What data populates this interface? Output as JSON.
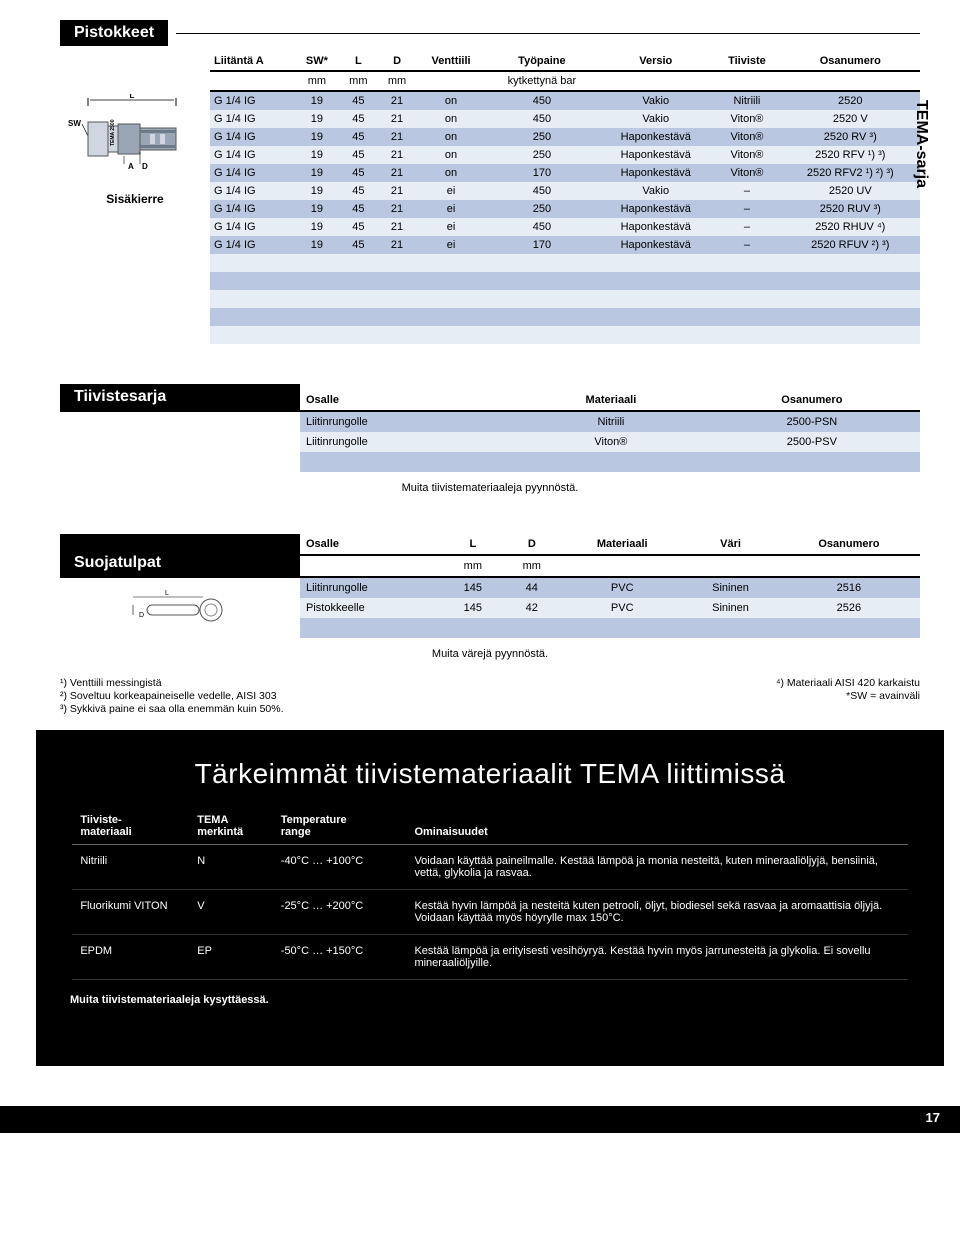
{
  "side_tab": "TEMA-sarja",
  "table1": {
    "title": "Pistokkeet",
    "headers": [
      "Liitäntä A",
      "SW*",
      "L",
      "D",
      "Venttiili",
      "Työpaine",
      "Versio",
      "Tiiviste",
      "Osanumero"
    ],
    "subheaders": [
      "",
      "mm",
      "mm",
      "mm",
      "",
      "kytkettynä bar",
      "",
      "",
      ""
    ],
    "diagram_caption": "Sisäkierre",
    "rows": [
      [
        "G 1/4 IG",
        "19",
        "45",
        "21",
        "on",
        "450",
        "Vakio",
        "Nitriili",
        "2520"
      ],
      [
        "G 1/4 IG",
        "19",
        "45",
        "21",
        "on",
        "450",
        "Vakio",
        "Viton®",
        "2520 V"
      ],
      [
        "G 1/4 IG",
        "19",
        "45",
        "21",
        "on",
        "250",
        "Haponkestävä",
        "Viton®",
        "2520 RV ³)"
      ],
      [
        "G 1/4 IG",
        "19",
        "45",
        "21",
        "on",
        "250",
        "Haponkestävä",
        "Viton®",
        "2520 RFV ¹) ³)"
      ],
      [
        "G 1/4 IG",
        "19",
        "45",
        "21",
        "on",
        "170",
        "Haponkestävä",
        "Viton®",
        "2520 RFV2 ¹) ²) ³)"
      ],
      [
        "G 1/4 IG",
        "19",
        "45",
        "21",
        "ei",
        "450",
        "Vakio",
        "–",
        "2520 UV"
      ],
      [
        "G 1/4 IG",
        "19",
        "45",
        "21",
        "ei",
        "250",
        "Haponkestävä",
        "–",
        "2520 RUV ³)"
      ],
      [
        "G 1/4 IG",
        "19",
        "45",
        "21",
        "ei",
        "450",
        "Haponkestävä",
        "–",
        "2520 RHUV ⁴)"
      ],
      [
        "G 1/4 IG",
        "19",
        "45",
        "21",
        "ei",
        "170",
        "Haponkestävä",
        "–",
        "2520 RFUV ²) ³)"
      ]
    ],
    "empty_rows": 5,
    "diagram_labels": {
      "L": "L",
      "SW": "SW",
      "A": "A",
      "D": "D",
      "mark": "TEMA 2500"
    }
  },
  "table2": {
    "title": "Tiivistesarja",
    "headers": [
      "Osalle",
      "Materiaali",
      "Osanumero"
    ],
    "rows": [
      [
        "Liitinrungolle",
        "Nitriili",
        "2500-PSN"
      ],
      [
        "Liitinrungolle",
        "Viton®",
        "2500-PSV"
      ]
    ],
    "note": "Muita tiivistemateriaaleja pyynnöstä."
  },
  "table3": {
    "title": "Suojatulpat",
    "headers": [
      "Osalle",
      "L",
      "D",
      "Materiaali",
      "Väri",
      "Osanumero"
    ],
    "subheaders": [
      "",
      "mm",
      "mm",
      "",
      "",
      ""
    ],
    "rows": [
      [
        "Liitinrungolle",
        "145",
        "44",
        "PVC",
        "Sininen",
        "2516"
      ],
      [
        "Pistokkeelle",
        "145",
        "42",
        "PVC",
        "Sininen",
        "2526"
      ]
    ],
    "note": "Muita värejä pyynnöstä."
  },
  "footnotes_left": [
    "¹) Venttiili messingistä",
    "²) Soveltuu korkeapaineiselle vedelle, AISI 303",
    "³) Sykkivä paine ei saa olla enemmän kuin 50%."
  ],
  "footnotes_right": [
    "⁴) Materiaali AISI 420 karkaistu",
    "*SW = avainväli"
  ],
  "materials": {
    "heading": "Tärkeimmät tiivistemateriaalit TEMA liittimissä",
    "headers": [
      "Tiiviste-\nmateriaali",
      "TEMA\nmerkintä",
      "Temperature\nrange",
      "Ominaisuudet"
    ],
    "rows": [
      [
        "Nitriili",
        "N",
        "-40°C … +100°C",
        "Voidaan käyttää paineilmalle. Kestää lämpöä ja monia nesteitä, kuten mineraaliöljyjä, bensiiniä, vettä, glykolia ja rasvaa."
      ],
      [
        "Fluorikumi VITON",
        "V",
        "-25°C … +200°C",
        "Kestää hyvin lämpöä ja nesteitä kuten petrooli, öljyt, biodiesel sekä rasvaa ja aromaattisia öljyjä. Voidaan käyttää myös höyrylle max 150°C."
      ],
      [
        "EPDM",
        "EP",
        "-50°C … +150°C",
        "Kestää lämpöä ja erityisesti vesihöyryä. Kestää hyvin myös jarrunesteitä ja glykolia. Ei sovellu mineraaliöljyille."
      ]
    ],
    "note": "Muita tiivistemateriaaleja kysyttäessä."
  },
  "page_number": "17",
  "colors": {
    "stripe1": "#b9c7e0",
    "stripe2": "#e6edf5"
  }
}
